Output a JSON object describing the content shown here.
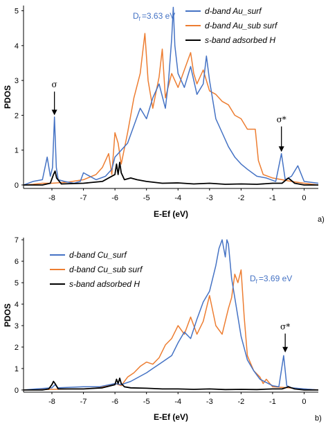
{
  "colors": {
    "d_surf": "#4472C4",
    "d_sub": "#ED7D31",
    "s_H": "#000000",
    "df_text": "#4472C4"
  },
  "chart_data": [
    {
      "type": "line",
      "panel_label": "a)",
      "xlabel": "E-Ef (eV)",
      "ylabel": "PDOS",
      "xlim": [
        -8.9,
        0.45
      ],
      "ylim": [
        -0.1,
        5.15
      ],
      "xticks": [
        -8,
        -7,
        -6,
        -5,
        -4,
        -3,
        -2,
        -1,
        0
      ],
      "xtick_labels": [
        "-8",
        "-7",
        "-6",
        "-5",
        "-4",
        "-3",
        "-2",
        "-1",
        "0"
      ],
      "yticks": [
        0,
        1,
        2,
        3,
        4,
        5
      ],
      "ytick_labels": [
        "0",
        "1",
        "2",
        "3",
        "4",
        "5"
      ],
      "legend_position": "top-right",
      "df_label": "D",
      "df_sub": "f",
      "df_value": "=3.63 eV",
      "annotations": [
        {
          "text": "σ",
          "x": -7.92,
          "y": 2.6,
          "arrow_to": 2.0
        },
        {
          "text": "σ*",
          "x": -0.72,
          "y": 1.6,
          "arrow_to": 0.95
        }
      ],
      "series": [
        {
          "name": "d-band Au_surf",
          "color_key": "d_surf",
          "x": [
            -8.9,
            -8.6,
            -8.3,
            -8.15,
            -8.05,
            -7.98,
            -7.92,
            -7.86,
            -7.8,
            -7.6,
            -7.3,
            -7.1,
            -7.0,
            -6.6,
            -6.3,
            -6.1,
            -6.0,
            -5.9,
            -5.8,
            -5.6,
            -5.4,
            -5.2,
            -5.0,
            -4.8,
            -4.6,
            -4.4,
            -4.3,
            -4.2,
            -4.15,
            -4.1,
            -4.0,
            -3.8,
            -3.6,
            -3.4,
            -3.2,
            -3.1,
            -3.0,
            -2.8,
            -2.6,
            -2.4,
            -2.2,
            -2.0,
            -1.8,
            -1.5,
            -1.2,
            -0.9,
            -0.72,
            -0.6,
            -0.4,
            -0.2,
            0.0,
            0.45
          ],
          "y": [
            0.0,
            0.1,
            0.15,
            0.8,
            0.25,
            0.5,
            1.95,
            0.5,
            0.15,
            0.1,
            0.05,
            0.1,
            0.35,
            0.15,
            0.25,
            0.45,
            0.8,
            0.9,
            1.0,
            1.2,
            1.7,
            2.2,
            1.9,
            2.5,
            2.9,
            2.2,
            3.0,
            4.2,
            5.1,
            4.0,
            3.2,
            2.8,
            3.4,
            2.6,
            2.9,
            3.7,
            3.0,
            1.9,
            1.5,
            1.1,
            0.8,
            0.6,
            0.45,
            0.25,
            0.2,
            0.1,
            0.9,
            0.15,
            0.25,
            0.55,
            0.1,
            0.05
          ]
        },
        {
          "name": "d-band Au_sub surf",
          "color_key": "d_sub",
          "x": [
            -8.9,
            -8.6,
            -8.3,
            -8.0,
            -7.5,
            -7.0,
            -6.6,
            -6.4,
            -6.2,
            -6.1,
            -6.0,
            -5.9,
            -5.8,
            -5.6,
            -5.4,
            -5.2,
            -5.05,
            -4.95,
            -4.8,
            -4.6,
            -4.5,
            -4.4,
            -4.2,
            -4.0,
            -3.8,
            -3.6,
            -3.5,
            -3.4,
            -3.2,
            -3.0,
            -2.8,
            -2.6,
            -2.4,
            -2.2,
            -2.0,
            -1.8,
            -1.55,
            -1.45,
            -1.3,
            -1.0,
            -0.7,
            -0.4,
            0.0,
            0.45
          ],
          "y": [
            0.0,
            0.02,
            0.05,
            0.05,
            0.08,
            0.15,
            0.3,
            0.5,
            0.9,
            0.3,
            1.5,
            1.2,
            0.6,
            1.5,
            2.5,
            3.2,
            4.35,
            3.0,
            2.2,
            3.1,
            3.9,
            2.5,
            3.2,
            2.8,
            3.3,
            3.8,
            3.2,
            2.9,
            3.3,
            2.7,
            2.6,
            2.4,
            2.3,
            2.0,
            1.9,
            1.6,
            1.6,
            0.7,
            0.3,
            0.2,
            0.15,
            0.1,
            0.05,
            0.0
          ]
        },
        {
          "name": "s-band adsorbed H",
          "color_key": "s_H",
          "x": [
            -8.9,
            -8.3,
            -8.05,
            -7.95,
            -7.9,
            -7.85,
            -7.7,
            -7.0,
            -6.4,
            -6.0,
            -5.95,
            -5.9,
            -5.85,
            -5.8,
            -5.75,
            -5.7,
            -5.5,
            -5.3,
            -5.0,
            -4.5,
            -4.0,
            -3.5,
            -3.0,
            -2.5,
            -2.0,
            -1.5,
            -1.0,
            -0.7,
            -0.5,
            -0.3,
            0.0,
            0.45
          ],
          "y": [
            0.0,
            0.0,
            0.05,
            0.3,
            0.4,
            0.2,
            0.03,
            0.05,
            0.1,
            0.3,
            0.6,
            0.3,
            0.65,
            0.35,
            0.25,
            0.15,
            0.2,
            0.15,
            0.1,
            0.05,
            0.06,
            0.03,
            0.05,
            0.02,
            0.03,
            0.02,
            0.05,
            0.05,
            0.2,
            0.05,
            0.0,
            0.0
          ]
        }
      ]
    },
    {
      "type": "line",
      "panel_label": "b)",
      "xlabel": "E-Ef (eV)",
      "ylabel": "PDOS",
      "xlim": [
        -8.9,
        0.45
      ],
      "ylim": [
        -0.1,
        7.1
      ],
      "xticks": [
        -8,
        -7,
        -6,
        -5,
        -4,
        -3,
        -2,
        -1,
        0
      ],
      "xtick_labels": [
        "-8",
        "-7",
        "-6",
        "-5",
        "-4",
        "-3",
        "-2",
        "-1",
        "0"
      ],
      "yticks": [
        0,
        1,
        2,
        3,
        4,
        5,
        6,
        7
      ],
      "ytick_labels": [
        "0",
        "1",
        "2",
        "3",
        "4",
        "5",
        "6",
        "7"
      ],
      "legend_position": "top-left",
      "df_label": "D",
      "df_sub": "f",
      "df_value": "=3.69 eV",
      "annotations": [
        {
          "text": "σ*",
          "x": -0.6,
          "y": 2.5,
          "arrow_to": 1.75
        }
      ],
      "series": [
        {
          "name": "d-band Cu_surf",
          "color_key": "d_surf",
          "x": [
            -8.9,
            -8.5,
            -8.0,
            -7.9,
            -7.8,
            -7.0,
            -6.5,
            -6.0,
            -5.8,
            -5.5,
            -5.0,
            -4.8,
            -4.5,
            -4.2,
            -4.0,
            -3.8,
            -3.6,
            -3.4,
            -3.2,
            -3.0,
            -2.8,
            -2.7,
            -2.6,
            -2.5,
            -2.45,
            -2.4,
            -2.3,
            -2.2,
            -2.0,
            -1.8,
            -1.6,
            -1.4,
            -1.2,
            -1.0,
            -0.8,
            -0.65,
            -0.55,
            -0.4,
            0.0,
            0.45
          ],
          "y": [
            0.0,
            0.05,
            0.1,
            0.25,
            0.1,
            0.15,
            0.15,
            0.3,
            0.25,
            0.4,
            0.8,
            1.0,
            1.3,
            1.6,
            2.2,
            2.7,
            2.4,
            3.3,
            4.1,
            4.6,
            5.8,
            6.6,
            7.0,
            6.2,
            7.0,
            6.8,
            5.2,
            4.3,
            2.5,
            1.4,
            0.9,
            0.5,
            0.35,
            0.2,
            0.15,
            1.6,
            0.2,
            0.1,
            0.05,
            0.0
          ]
        },
        {
          "name": "d-band Cu_sub surf",
          "color_key": "d_sub",
          "x": [
            -8.9,
            -8.0,
            -7.5,
            -7.0,
            -6.5,
            -6.0,
            -5.8,
            -5.6,
            -5.4,
            -5.2,
            -5.0,
            -4.8,
            -4.6,
            -4.4,
            -4.2,
            -4.0,
            -3.8,
            -3.6,
            -3.4,
            -3.2,
            -3.0,
            -2.8,
            -2.6,
            -2.4,
            -2.3,
            -2.2,
            -2.1,
            -2.0,
            -1.9,
            -1.8,
            -1.6,
            -1.4,
            -1.3,
            -1.2,
            -1.0,
            -0.5,
            0.0,
            0.45
          ],
          "y": [
            0.0,
            0.03,
            0.05,
            0.05,
            0.1,
            0.3,
            0.2,
            0.6,
            0.8,
            1.1,
            1.3,
            1.2,
            1.5,
            2.1,
            2.4,
            3.0,
            2.6,
            3.4,
            2.6,
            3.2,
            4.4,
            3.0,
            2.6,
            3.8,
            4.3,
            5.4,
            5.0,
            5.6,
            3.4,
            1.6,
            0.9,
            0.6,
            0.3,
            0.5,
            0.15,
            0.1,
            0.05,
            0.0
          ]
        },
        {
          "name": "s-band adsorbed H",
          "color_key": "s_H",
          "x": [
            -8.9,
            -8.3,
            -8.1,
            -8.0,
            -7.95,
            -7.9,
            -7.8,
            -7.0,
            -6.4,
            -6.0,
            -5.95,
            -5.9,
            -5.85,
            -5.8,
            -5.7,
            -5.5,
            -5.0,
            -4.5,
            -4.0,
            -3.5,
            -3.0,
            -2.5,
            -2.0,
            -1.5,
            -1.0,
            -0.7,
            -0.5,
            -0.3,
            0.0,
            0.45
          ],
          "y": [
            0.0,
            0.0,
            0.05,
            0.25,
            0.4,
            0.3,
            0.05,
            0.05,
            0.1,
            0.25,
            0.5,
            0.3,
            0.55,
            0.3,
            0.15,
            0.1,
            0.08,
            0.05,
            0.05,
            0.03,
            0.05,
            0.02,
            0.03,
            0.02,
            0.05,
            0.05,
            0.15,
            0.05,
            0.0,
            0.0
          ]
        }
      ]
    }
  ]
}
